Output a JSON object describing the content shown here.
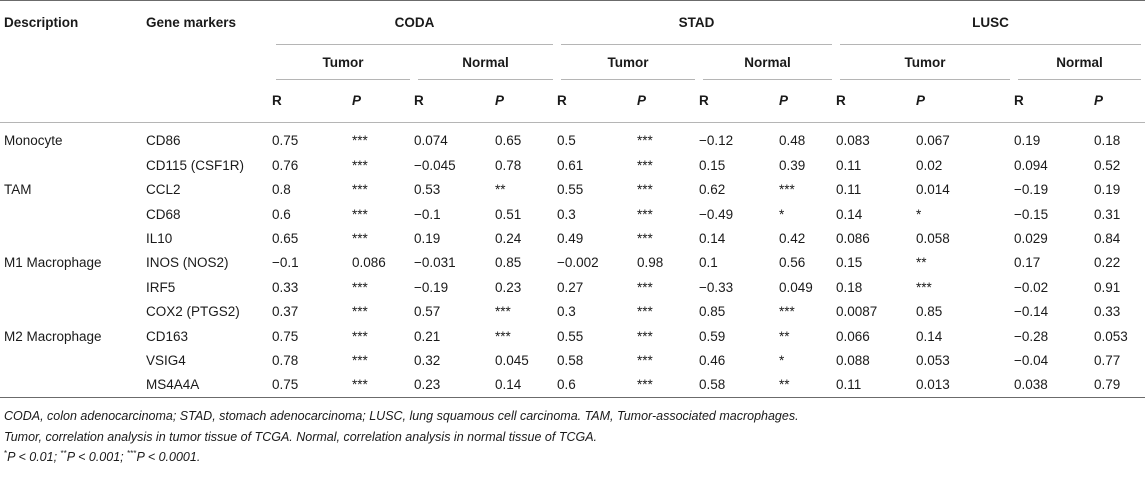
{
  "header": {
    "description": "Description",
    "gene_markers": "Gene markers",
    "groups": [
      "CODA",
      "STAD",
      "LUSC"
    ],
    "tumor": "Tumor",
    "normal": "Normal",
    "r": "R",
    "p": "P"
  },
  "rows": [
    {
      "desc": "Monocyte",
      "gene": "CD86",
      "v": [
        "0.75",
        "***",
        "0.074",
        "0.65",
        "0.5",
        "***",
        "−0.12",
        "0.48",
        "0.083",
        "0.067",
        "0.19",
        "0.18"
      ]
    },
    {
      "desc": "",
      "gene": "CD115 (CSF1R)",
      "v": [
        "0.76",
        "***",
        "−0.045",
        "0.78",
        "0.61",
        "***",
        "0.15",
        "0.39",
        "0.11",
        "0.02",
        "0.094",
        "0.52"
      ]
    },
    {
      "desc": "TAM",
      "gene": "CCL2",
      "v": [
        "0.8",
        "***",
        "0.53",
        "**",
        "0.55",
        "***",
        "0.62",
        "***",
        "0.11",
        "0.014",
        "−0.19",
        "0.19"
      ]
    },
    {
      "desc": "",
      "gene": "CD68",
      "v": [
        "0.6",
        "***",
        "−0.1",
        "0.51",
        "0.3",
        "***",
        "−0.49",
        "*",
        "0.14",
        "*",
        "−0.15",
        "0.31"
      ]
    },
    {
      "desc": "",
      "gene": "IL10",
      "v": [
        "0.65",
        "***",
        "0.19",
        "0.24",
        "0.49",
        "***",
        "0.14",
        "0.42",
        "0.086",
        "0.058",
        "0.029",
        "0.84"
      ]
    },
    {
      "desc": "M1 Macrophage",
      "gene": "INOS (NOS2)",
      "v": [
        "−0.1",
        "0.086",
        "−0.031",
        "0.85",
        "−0.002",
        "0.98",
        "0.1",
        "0.56",
        "0.15",
        "**",
        "0.17",
        "0.22"
      ]
    },
    {
      "desc": "",
      "gene": "IRF5",
      "v": [
        "0.33",
        "***",
        "−0.19",
        "0.23",
        "0.27",
        "***",
        "−0.33",
        "0.049",
        "0.18",
        "***",
        "−0.02",
        "0.91"
      ]
    },
    {
      "desc": "",
      "gene": "COX2 (PTGS2)",
      "v": [
        "0.37",
        "***",
        "0.57",
        "***",
        "0.3",
        "***",
        "0.85",
        "***",
        "0.0087",
        "0.85",
        "−0.14",
        "0.33"
      ]
    },
    {
      "desc": "M2 Macrophage",
      "gene": "CD163",
      "v": [
        "0.75",
        "***",
        "0.21",
        "***",
        "0.55",
        "***",
        "0.59",
        "**",
        "0.066",
        "0.14",
        "−0.28",
        "0.053"
      ]
    },
    {
      "desc": "",
      "gene": "VSIG4",
      "v": [
        "0.78",
        "***",
        "0.32",
        "0.045",
        "0.58",
        "***",
        "0.46",
        "*",
        "0.088",
        "0.053",
        "−0.04",
        "0.77"
      ]
    },
    {
      "desc": "",
      "gene": "MS4A4A",
      "v": [
        "0.75",
        "***",
        "0.23",
        "0.14",
        "0.6",
        "***",
        "0.58",
        "**",
        "0.11",
        "0.013",
        "0.038",
        "0.79"
      ]
    }
  ],
  "notes": {
    "line1": "CODA, colon adenocarcinoma; STAD, stomach adenocarcinoma; LUSC, lung squamous cell carcinoma. TAM, Tumor-associated macrophages.",
    "line2": "Tumor, correlation analysis in tumor tissue of TCGA. Normal, correlation analysis in normal tissue of TCGA.",
    "star1": "*",
    "p1": "P < 0.01; ",
    "star2": "**",
    "p2": "P < 0.001; ",
    "star3": "***",
    "p3": "P < 0.0001."
  }
}
